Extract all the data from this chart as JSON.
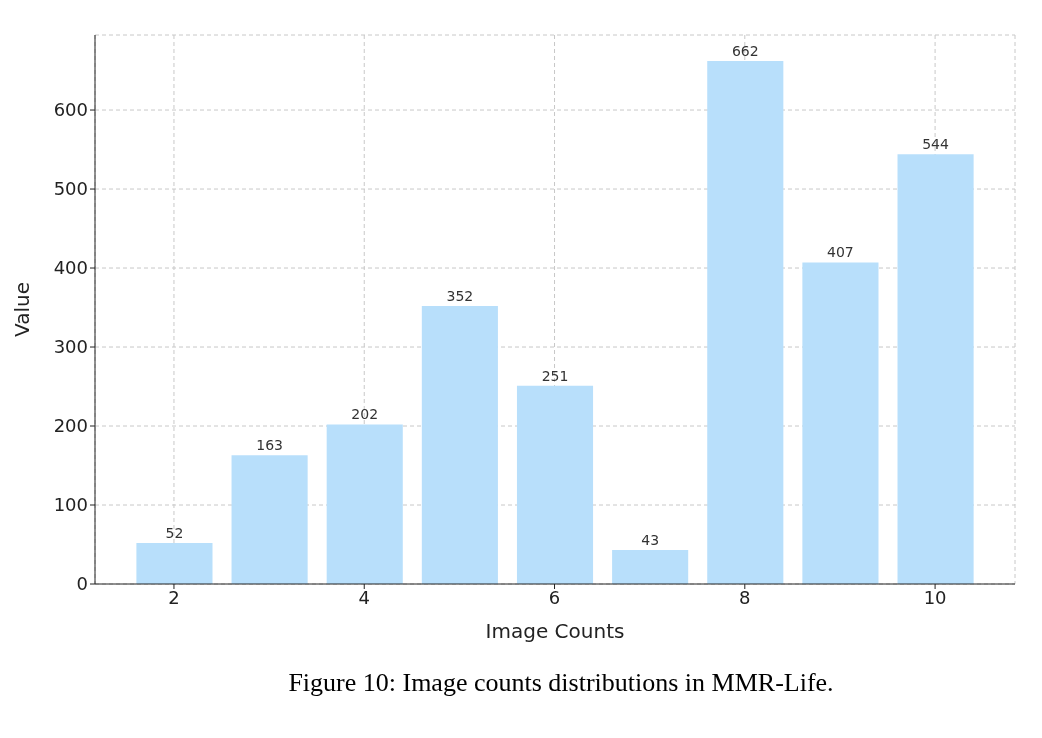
{
  "chart_data": {
    "type": "bar",
    "xlabel": "Image Counts",
    "ylabel": "Value",
    "x": [
      2,
      3,
      4,
      5,
      6,
      7,
      8,
      9,
      10
    ],
    "values": [
      52,
      163,
      202,
      352,
      251,
      43,
      662,
      407,
      544
    ],
    "color": "#b8dffb",
    "xlim": [
      1.17,
      10.84
    ],
    "xticks": [
      2,
      4,
      6,
      8,
      10
    ],
    "ylim": [
      0,
      695
    ],
    "yticks": [
      0,
      100,
      200,
      300,
      400,
      500,
      600
    ],
    "grid": true,
    "data_labels": true,
    "annotations": [
      "Figure 10: Image counts distributions in MMR-Life."
    ]
  }
}
